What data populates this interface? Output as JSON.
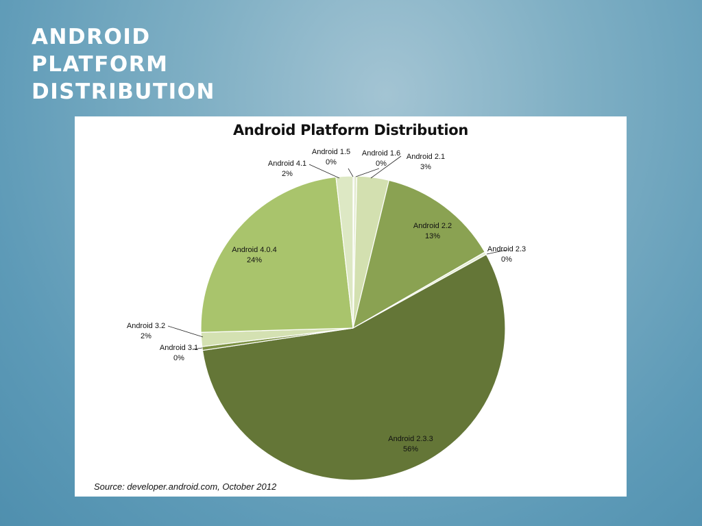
{
  "slide": {
    "title_lines": [
      "ANDROID",
      "PLATFORM",
      "DISTRIBUTION"
    ]
  },
  "chart_data": {
    "type": "pie",
    "title": "Android Platform Distribution",
    "source": "Source: developer.android.com, October 2012",
    "start_angle_deg": 0,
    "direction": "clockwise",
    "slices": [
      {
        "name": "Android 1.5",
        "value": 0.1,
        "label_pct": "0%",
        "color": "#6f7f4a"
      },
      {
        "name": "Android 1.6",
        "value": 0.3,
        "label_pct": "0%",
        "color": "#e3ebcf"
      },
      {
        "name": "Android 2.1",
        "value": 3.4,
        "label_pct": "3%",
        "color": "#d3e0b0"
      },
      {
        "name": "Android 2.2",
        "value": 12.9,
        "label_pct": "13%",
        "color": "#8aa252"
      },
      {
        "name": "Android 2.3",
        "value": 0.3,
        "label_pct": "0%",
        "color": "#e5edd2"
      },
      {
        "name": "Android 2.3.3",
        "value": 55.8,
        "label_pct": "56%",
        "color": "#647637"
      },
      {
        "name": "Android 3.1",
        "value": 0.4,
        "label_pct": "0%",
        "color": "#7d9244"
      },
      {
        "name": "Android 3.2",
        "value": 1.5,
        "label_pct": "2%",
        "color": "#d4e1b2"
      },
      {
        "name": "Android 4.0.4",
        "value": 23.7,
        "label_pct": "24%",
        "color": "#a9c46c"
      },
      {
        "name": "Android 4.1",
        "value": 1.8,
        "label_pct": "2%",
        "color": "#dde8c4"
      }
    ]
  }
}
